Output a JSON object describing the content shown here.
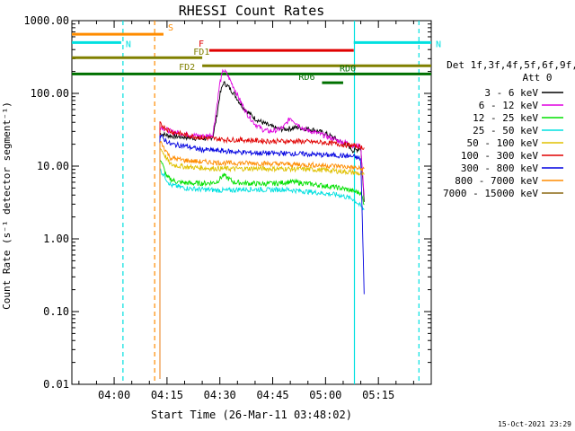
{
  "chart_data": {
    "type": "line",
    "title": "RHESSI Count Rates",
    "xlabel": "Start Time (26-Mar-11 03:48:02)",
    "ylabel": "Count Rate (s⁻¹ detector segment⁻¹)",
    "yscale": "log",
    "ylim": [
      0.01,
      1000
    ],
    "xlim_minutes_of_day": [
      228,
      330
    ],
    "y_ticks": [
      "1000.00",
      "100.00",
      "10.00",
      "1.00",
      "0.10",
      "0.01"
    ],
    "x_ticks": [
      {
        "label": "04:00",
        "t": 240
      },
      {
        "label": "04:15",
        "t": 255
      },
      {
        "label": "04:30",
        "t": 270
      },
      {
        "label": "04:45",
        "t": 285
      },
      {
        "label": "05:00",
        "t": 300
      },
      {
        "label": "05:15",
        "t": 315
      }
    ],
    "legend": {
      "header": [
        "Det 1f,3f,4f,5f,6f,9f,",
        "Att 0"
      ],
      "position": "right"
    },
    "series": [
      {
        "name": "3 - 6 keV",
        "color": "#000000",
        "t": [
          253,
          256,
          260,
          264,
          266,
          268,
          269,
          270,
          271,
          272,
          274,
          276,
          278,
          280,
          282,
          284,
          286,
          288,
          290,
          292,
          294,
          296,
          298,
          300,
          302,
          304,
          306,
          307,
          308,
          310,
          311
        ],
        "values": [
          28,
          26,
          25,
          24,
          24,
          25,
          45,
          95,
          140,
          130,
          100,
          70,
          55,
          45,
          40,
          36,
          33,
          32,
          33,
          34,
          33,
          32,
          30,
          28,
          25,
          22,
          20,
          18,
          16,
          18,
          3
        ]
      },
      {
        "name": "6 - 12 keV",
        "color": "#e000e0",
        "t": [
          253,
          256,
          260,
          264,
          266,
          268,
          269,
          270,
          271,
          272,
          274,
          276,
          278,
          280,
          282,
          284,
          286,
          288,
          290,
          292,
          294,
          296,
          298,
          300,
          302,
          304,
          306,
          307,
          308,
          310,
          311
        ],
        "values": [
          35,
          30,
          28,
          26,
          26,
          27,
          60,
          140,
          210,
          185,
          120,
          75,
          50,
          38,
          32,
          30,
          31,
          34,
          46,
          38,
          32,
          30,
          28,
          26,
          24,
          22,
          21,
          20,
          19,
          19,
          3.5
        ]
      },
      {
        "name": "12 - 25 keV",
        "color": "#00e000",
        "t": [
          253,
          255,
          258,
          262,
          266,
          269,
          271,
          274,
          278,
          282,
          286,
          290,
          294,
          298,
          302,
          306,
          308,
          310,
          311
        ],
        "values": [
          13,
          7,
          6,
          5.8,
          5.8,
          6,
          7.5,
          6,
          5.8,
          5.7,
          5.8,
          6.1,
          5.8,
          5.5,
          5.2,
          4.8,
          4.5,
          4.3,
          3
        ]
      },
      {
        "name": "25 - 50 keV",
        "color": "#00e0e0",
        "t": [
          253,
          256,
          260,
          264,
          268,
          272,
          276,
          280,
          284,
          288,
          292,
          296,
          300,
          304,
          308,
          311
        ],
        "values": [
          9,
          5.5,
          5,
          4.8,
          4.7,
          4.6,
          4.8,
          4.8,
          4.7,
          4.8,
          4.6,
          4.4,
          4.2,
          4,
          3.5,
          2.5
        ]
      },
      {
        "name": "50 - 100 keV",
        "color": "#e0c000",
        "t": [
          253,
          256,
          260,
          264,
          268,
          272,
          276,
          280,
          284,
          288,
          292,
          296,
          300,
          304,
          308,
          311
        ],
        "values": [
          18,
          10.5,
          9.8,
          9.5,
          9.3,
          9.2,
          9.2,
          9.3,
          9.2,
          9.2,
          9.1,
          9,
          8.8,
          8.5,
          8.2,
          7.5
        ]
      },
      {
        "name": "100 - 300 keV",
        "color": "#e00000",
        "t": [
          253,
          256,
          260,
          264,
          268,
          272,
          276,
          280,
          284,
          288,
          292,
          296,
          300,
          304,
          308,
          311
        ],
        "values": [
          38,
          30,
          27,
          25,
          24,
          23,
          23,
          22.5,
          22,
          22,
          22,
          21.5,
          21,
          20,
          19,
          18
        ]
      },
      {
        "name": "300 - 800 keV",
        "color": "#0000e0",
        "t": [
          253,
          256,
          260,
          264,
          268,
          272,
          276,
          280,
          284,
          288,
          292,
          296,
          300,
          304,
          308,
          310,
          311
        ],
        "values": [
          26,
          20,
          19,
          17,
          16.5,
          16,
          15.5,
          15.2,
          15,
          15,
          14.8,
          14.5,
          14.2,
          14,
          13.5,
          12.5,
          0.15
        ]
      },
      {
        "name": "800 - 7000 keV",
        "color": "#ff8c00",
        "t": [
          253,
          256,
          260,
          264,
          268,
          272,
          276,
          280,
          284,
          288,
          292,
          296,
          300,
          304,
          308,
          311
        ],
        "values": [
          22,
          13,
          12,
          11.5,
          11.3,
          11,
          11,
          11,
          10.8,
          10.7,
          10.5,
          10.4,
          10.2,
          10,
          9.5,
          9
        ]
      },
      {
        "name": "7000 - 15000 keV",
        "color": "#8b6914",
        "t": [],
        "values": []
      }
    ],
    "state_bars": [
      {
        "label": "S",
        "color": "#ff8c00",
        "t0": 228,
        "t1": 254,
        "y": 650
      },
      {
        "label": "N",
        "color": "#00e0e0",
        "t0": 228,
        "t1": 242,
        "y": 500
      },
      {
        "label": "N",
        "color": "#00e0e0",
        "t0": 308,
        "t1": 330,
        "y": 500
      },
      {
        "label": "F",
        "color": "#e00000",
        "t0": 267,
        "t1": 308,
        "y": 390
      },
      {
        "label": "FD1",
        "color": "#808000",
        "t0": 228,
        "t1": 265,
        "y": 310
      },
      {
        "label": "FD2",
        "color": "#808000",
        "t0": 265,
        "t1": 330,
        "y": 240
      },
      {
        "label": "RD0",
        "color": "#007000",
        "t0": 228,
        "t1": 330,
        "y": 185
      },
      {
        "label": "RD6",
        "color": "#007000",
        "t0": 299,
        "t1": 305,
        "y": 140
      }
    ],
    "vertical_markers": [
      {
        "t": 242.5,
        "color": "#00e0e0",
        "style": "dashed"
      },
      {
        "t": 251.5,
        "color": "#ff8c00",
        "style": "dashed"
      },
      {
        "t": 308.2,
        "color": "#00e0e0",
        "style": "solid"
      },
      {
        "t": 326.5,
        "color": "#00e0e0",
        "style": "dashed"
      }
    ],
    "footer_date": "15-Oct-2021 23:29"
  }
}
